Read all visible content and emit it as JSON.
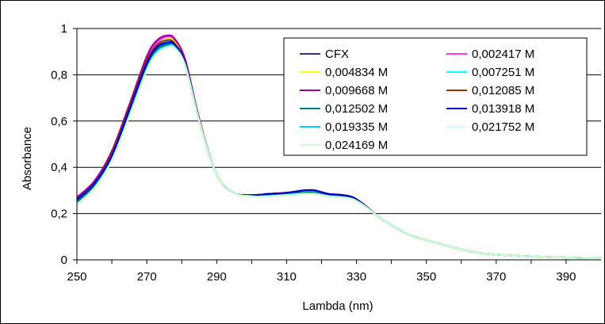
{
  "chart_data": {
    "type": "line",
    "xlabel": "Lambda (nm)",
    "ylabel": "Absorbance",
    "xlim": [
      250,
      400
    ],
    "ylim": [
      0,
      1
    ],
    "x_ticks": [
      "250",
      "270",
      "290",
      "310",
      "330",
      "350",
      "370",
      "390"
    ],
    "y_ticks": [
      "0",
      "0,2",
      "0,4",
      "0,6",
      "0,8",
      "1"
    ],
    "grid": "horizontal",
    "legend_position": "top-right",
    "x": [
      250,
      255,
      260,
      265,
      270,
      273,
      276,
      278,
      281,
      285,
      290,
      295,
      300,
      305,
      310,
      315,
      318,
      322,
      326,
      329,
      332,
      336,
      340,
      345,
      350,
      355,
      360,
      365,
      370,
      375,
      380,
      385,
      390,
      395,
      400
    ],
    "series": [
      {
        "name": "CFX",
        "color": "#2e3192",
        "values": [
          0.26,
          0.32,
          0.44,
          0.63,
          0.82,
          0.9,
          0.93,
          0.92,
          0.84,
          0.6,
          0.37,
          0.29,
          0.28,
          0.285,
          0.29,
          0.3,
          0.3,
          0.285,
          0.28,
          0.27,
          0.24,
          0.19,
          0.15,
          0.11,
          0.085,
          0.065,
          0.045,
          0.03,
          0.023,
          0.018,
          0.015,
          0.012,
          0.01,
          0.008,
          0.007
        ]
      },
      {
        "name": "0,002417 M",
        "color": "#ff33ff",
        "values": [
          0.27,
          0.34,
          0.47,
          0.67,
          0.87,
          0.94,
          0.965,
          0.95,
          0.86,
          0.61,
          0.37,
          0.29,
          0.28,
          0.285,
          0.29,
          0.3,
          0.3,
          0.285,
          0.28,
          0.27,
          0.24,
          0.19,
          0.15,
          0.11,
          0.085,
          0.065,
          0.045,
          0.03,
          0.023,
          0.018,
          0.015,
          0.012,
          0.01,
          0.008,
          0.007
        ]
      },
      {
        "name": "0,004834 M",
        "color": "#ffff00",
        "values": [
          0.26,
          0.33,
          0.46,
          0.66,
          0.86,
          0.93,
          0.955,
          0.94,
          0.855,
          0.605,
          0.37,
          0.29,
          0.28,
          0.285,
          0.29,
          0.3,
          0.3,
          0.285,
          0.28,
          0.27,
          0.24,
          0.19,
          0.15,
          0.11,
          0.085,
          0.065,
          0.045,
          0.03,
          0.023,
          0.018,
          0.015,
          0.012,
          0.01,
          0.008,
          0.007
        ]
      },
      {
        "name": "0,007251 M",
        "color": "#00ffff",
        "values": [
          0.25,
          0.32,
          0.45,
          0.65,
          0.85,
          0.92,
          0.945,
          0.93,
          0.85,
          0.6,
          0.37,
          0.29,
          0.28,
          0.28,
          0.285,
          0.295,
          0.295,
          0.283,
          0.278,
          0.268,
          0.24,
          0.19,
          0.15,
          0.11,
          0.085,
          0.065,
          0.045,
          0.03,
          0.023,
          0.018,
          0.015,
          0.012,
          0.01,
          0.008,
          0.007
        ]
      },
      {
        "name": "0,009668 M",
        "color": "#990099",
        "values": [
          0.27,
          0.34,
          0.47,
          0.67,
          0.88,
          0.95,
          0.97,
          0.955,
          0.865,
          0.61,
          0.37,
          0.29,
          0.28,
          0.285,
          0.29,
          0.3,
          0.3,
          0.285,
          0.28,
          0.27,
          0.24,
          0.19,
          0.15,
          0.11,
          0.085,
          0.065,
          0.045,
          0.03,
          0.023,
          0.018,
          0.015,
          0.012,
          0.01,
          0.008,
          0.007
        ]
      },
      {
        "name": "0,012085 M",
        "color": "#993300",
        "values": [
          0.26,
          0.33,
          0.46,
          0.66,
          0.86,
          0.93,
          0.95,
          0.935,
          0.85,
          0.6,
          0.37,
          0.29,
          0.28,
          0.285,
          0.29,
          0.3,
          0.3,
          0.285,
          0.28,
          0.27,
          0.24,
          0.19,
          0.15,
          0.11,
          0.085,
          0.065,
          0.045,
          0.03,
          0.023,
          0.018,
          0.015,
          0.012,
          0.01,
          0.008,
          0.007
        ]
      },
      {
        "name": "0,012502 M",
        "color": "#008080",
        "values": [
          0.25,
          0.32,
          0.45,
          0.64,
          0.84,
          0.91,
          0.935,
          0.925,
          0.845,
          0.6,
          0.37,
          0.29,
          0.28,
          0.28,
          0.285,
          0.29,
          0.29,
          0.28,
          0.275,
          0.266,
          0.238,
          0.19,
          0.15,
          0.11,
          0.085,
          0.065,
          0.045,
          0.03,
          0.023,
          0.018,
          0.015,
          0.012,
          0.01,
          0.008,
          0.007
        ]
      },
      {
        "name": "0,013918 M",
        "color": "#0000cc",
        "values": [
          0.26,
          0.33,
          0.45,
          0.65,
          0.85,
          0.92,
          0.94,
          0.93,
          0.85,
          0.6,
          0.37,
          0.29,
          0.28,
          0.285,
          0.29,
          0.3,
          0.3,
          0.285,
          0.28,
          0.27,
          0.24,
          0.19,
          0.15,
          0.11,
          0.085,
          0.065,
          0.045,
          0.03,
          0.023,
          0.018,
          0.015,
          0.012,
          0.01,
          0.008,
          0.007
        ]
      },
      {
        "name": "0,019335 M",
        "color": "#00ccff",
        "values": [
          0.24,
          0.31,
          0.43,
          0.62,
          0.82,
          0.9,
          0.925,
          0.92,
          0.84,
          0.6,
          0.37,
          0.29,
          0.275,
          0.275,
          0.28,
          0.285,
          0.285,
          0.275,
          0.27,
          0.262,
          0.236,
          0.19,
          0.15,
          0.11,
          0.085,
          0.065,
          0.045,
          0.03,
          0.023,
          0.018,
          0.015,
          0.012,
          0.01,
          0.008,
          0.007
        ]
      },
      {
        "name": "0,021752 M",
        "color": "#ccffff",
        "values": [
          0.24,
          0.31,
          0.43,
          0.62,
          0.82,
          0.895,
          0.92,
          0.915,
          0.84,
          0.6,
          0.37,
          0.29,
          0.275,
          0.275,
          0.28,
          0.285,
          0.285,
          0.275,
          0.27,
          0.262,
          0.236,
          0.19,
          0.15,
          0.11,
          0.085,
          0.065,
          0.045,
          0.03,
          0.023,
          0.018,
          0.015,
          0.012,
          0.01,
          0.008,
          0.007
        ]
      },
      {
        "name": "0,024169 M",
        "color": "#ccffcc",
        "values": [
          0.24,
          0.31,
          0.43,
          0.62,
          0.82,
          0.895,
          0.92,
          0.915,
          0.84,
          0.6,
          0.37,
          0.29,
          0.275,
          0.275,
          0.28,
          0.285,
          0.285,
          0.275,
          0.27,
          0.262,
          0.236,
          0.19,
          0.15,
          0.11,
          0.085,
          0.065,
          0.045,
          0.03,
          0.023,
          0.018,
          0.015,
          0.012,
          0.01,
          0.008,
          0.007
        ]
      }
    ]
  }
}
